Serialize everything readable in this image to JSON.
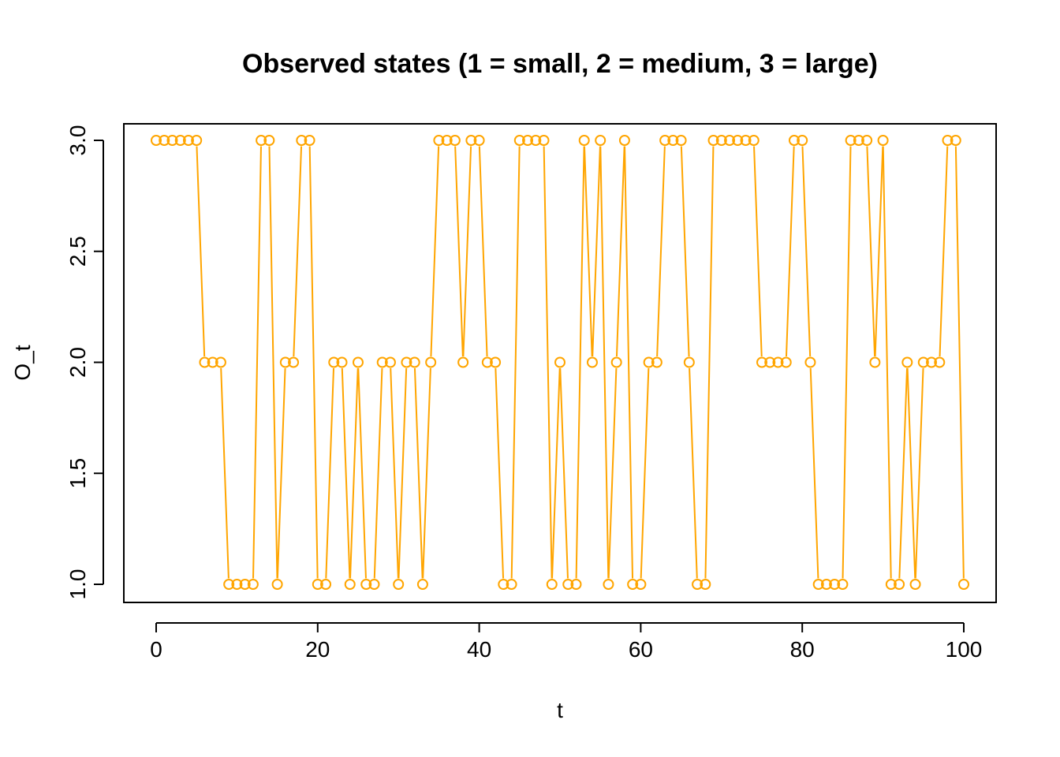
{
  "colors": {
    "series": "#FFA500",
    "axis": "#000000",
    "background": "#FFFFFF"
  },
  "chart_data": {
    "type": "line",
    "title": "Observed states (1 = small, 2 = medium, 3 = large)",
    "xlabel": "t",
    "ylabel": "O_t",
    "xlim": [
      0,
      100
    ],
    "ylim": [
      1,
      3
    ],
    "xticks": [
      0,
      20,
      40,
      60,
      80,
      100
    ],
    "xtick_labels": [
      "0",
      "20",
      "40",
      "60",
      "80",
      "100"
    ],
    "yticks": [
      1.0,
      1.5,
      2.0,
      2.5,
      3.0
    ],
    "ytick_labels": [
      "1.0",
      "1.5",
      "2.0",
      "2.5",
      "3.0"
    ],
    "grid": false,
    "legend": "none",
    "series": [
      {
        "name": "O_t",
        "marker": "open-circle",
        "x": [
          0,
          1,
          2,
          3,
          4,
          5,
          6,
          7,
          8,
          9,
          10,
          11,
          12,
          13,
          14,
          15,
          16,
          17,
          18,
          19,
          20,
          21,
          22,
          23,
          24,
          25,
          26,
          27,
          28,
          29,
          30,
          31,
          32,
          33,
          34,
          35,
          36,
          37,
          38,
          39,
          40,
          41,
          42,
          43,
          44,
          45,
          46,
          47,
          48,
          49,
          50,
          51,
          52,
          53,
          54,
          55,
          56,
          57,
          58,
          59,
          60,
          61,
          62,
          63,
          64,
          65,
          66,
          67,
          68,
          69,
          70,
          71,
          72,
          73,
          74,
          75,
          76,
          77,
          78,
          79,
          80,
          81,
          82,
          83,
          84,
          85,
          86,
          87,
          88,
          89,
          90,
          91,
          92,
          93,
          94,
          95,
          96,
          97,
          98,
          99,
          100
        ],
        "values": [
          3,
          3,
          3,
          3,
          3,
          3,
          2,
          2,
          2,
          1,
          1,
          1,
          1,
          3,
          3,
          1,
          2,
          2,
          3,
          3,
          1,
          1,
          2,
          2,
          1,
          2,
          1,
          1,
          2,
          2,
          1,
          2,
          2,
          1,
          2,
          3,
          3,
          3,
          2,
          3,
          3,
          2,
          2,
          1,
          1,
          3,
          3,
          3,
          3,
          1,
          2,
          1,
          1,
          3,
          2,
          3,
          1,
          2,
          3,
          1,
          1,
          2,
          2,
          3,
          3,
          3,
          2,
          1,
          1,
          3,
          3,
          3,
          3,
          3,
          3,
          2,
          2,
          2,
          2,
          3,
          3,
          2,
          1,
          1,
          1,
          1,
          3,
          3,
          3,
          2,
          3,
          1,
          1,
          2,
          1,
          2,
          2,
          2,
          3,
          3,
          1
        ]
      }
    ]
  }
}
